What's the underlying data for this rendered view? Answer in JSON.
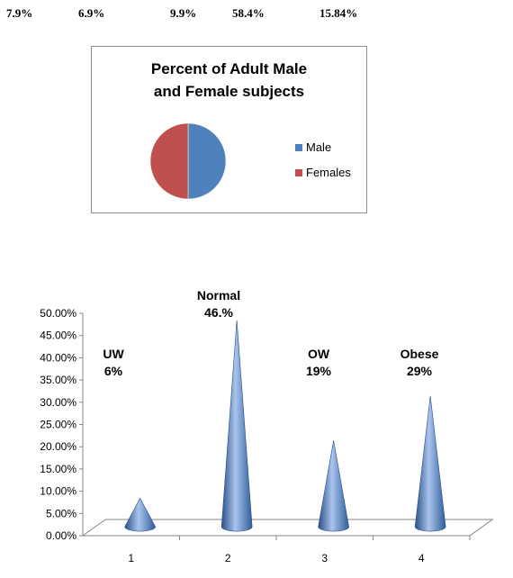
{
  "top_values": [
    "7.9%",
    "6.9%",
    "9.9%",
    "58.4%",
    "15.84%"
  ],
  "chart_data": [
    {
      "type": "pie",
      "title_lines": [
        "Percent of Adult Male",
        "and Female  subjects"
      ],
      "series": [
        {
          "name": "Male",
          "value": 50,
          "color": "#4f81bd"
        },
        {
          "name": "Females",
          "value": 50,
          "color": "#c0504d"
        }
      ],
      "legend": "right"
    },
    {
      "type": "bar",
      "subtype": "3d-cone",
      "categories": [
        "1",
        "2",
        "3",
        "4"
      ],
      "values": [
        6.0,
        46.0,
        19.0,
        29.0
      ],
      "ylim": [
        0,
        50
      ],
      "yticks": [
        "0.00%",
        "5.00%",
        "10.00%",
        "15.00%",
        "20.00%",
        "25.00%",
        "30.00%",
        "35.00%",
        "40.00%",
        "45.00%",
        "50.00%"
      ],
      "annotations": [
        {
          "lines": [
            "UW",
            "6%"
          ]
        },
        {
          "lines": [
            "Normal",
            "46.%"
          ]
        },
        {
          "lines": [
            "OW",
            "19%"
          ]
        },
        {
          "lines": [
            "Obese",
            "29%"
          ]
        }
      ],
      "color": "#4f81bd",
      "grid": false
    }
  ]
}
